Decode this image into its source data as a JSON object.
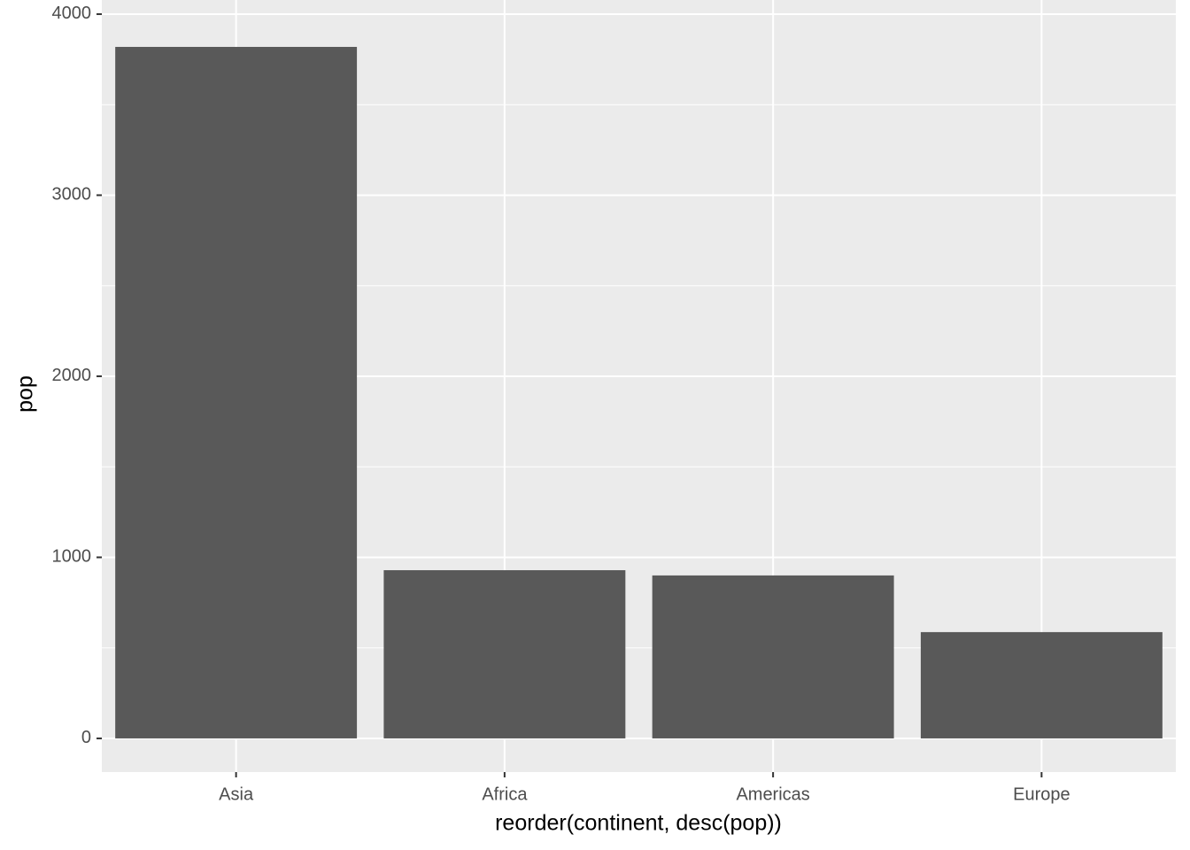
{
  "chart_data": {
    "type": "bar",
    "x_label": "reorder(continent, desc(pop))",
    "y_label": "pop",
    "categories": [
      "Asia",
      "Africa",
      "Americas",
      "Europe"
    ],
    "values": [
      3819,
      929,
      900,
      587
    ],
    "color": "#595959",
    "ylim": [
      -186,
      4078
    ],
    "yticks": [
      0,
      1000,
      2000,
      3000,
      4000
    ],
    "grid": true,
    "minor_grid": true
  }
}
